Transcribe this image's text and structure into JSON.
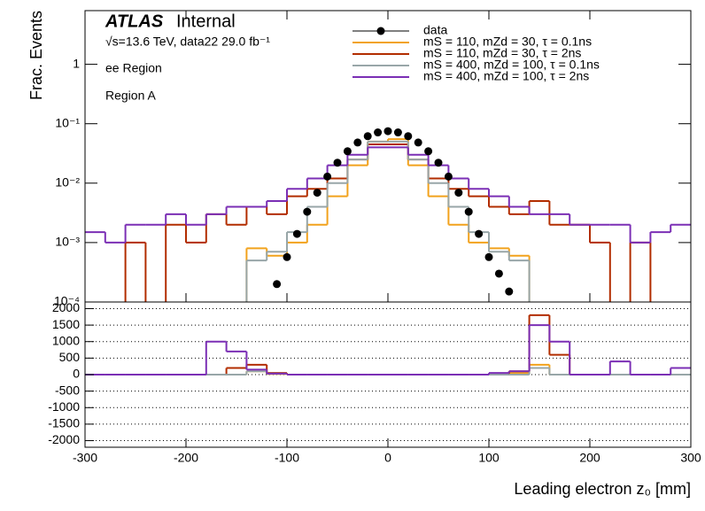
{
  "chart_data": [
    {
      "type": "histogram",
      "title": "ATLAS",
      "subtitle": "Internal",
      "energy_label": "√s=13.6 TeV, data22 29.0 fb⁻¹",
      "annotations": [
        "ee Region",
        "Region A"
      ],
      "ylabel": "Frac. Events",
      "log_y": true,
      "ylim": [
        0.0001,
        8
      ],
      "yticks": [
        {
          "value": 0.0001,
          "label": "10⁻⁴"
        },
        {
          "value": 0.001,
          "label": "10⁻³"
        },
        {
          "value": 0.01,
          "label": "10⁻²"
        },
        {
          "value": 0.1,
          "label": "10⁻¹"
        },
        1
      ],
      "bins": [
        -300,
        -280,
        -260,
        -240,
        -220,
        -200,
        -180,
        -160,
        -140,
        -120,
        -100,
        -80,
        -60,
        -40,
        -20,
        0,
        20,
        40,
        60,
        80,
        100,
        120,
        140,
        160,
        180,
        200,
        220,
        240,
        260,
        280,
        300
      ],
      "points": {
        "name": "data",
        "color": "#000000",
        "x": [
          -110,
          -100,
          -90,
          -80,
          -70,
          -60,
          -50,
          -40,
          -30,
          -20,
          -10,
          0,
          10,
          20,
          30,
          40,
          50,
          60,
          70,
          80,
          90,
          100,
          110,
          120
        ],
        "values": [
          0.0002,
          0.00057,
          0.0014,
          0.0033,
          0.0069,
          0.0129,
          0.0221,
          0.0344,
          0.0483,
          0.0617,
          0.0714,
          0.075,
          0.0714,
          0.0617,
          0.0483,
          0.0344,
          0.0221,
          0.0129,
          0.0069,
          0.0033,
          0.0014,
          0.00057,
          0.0003,
          0.00015
        ]
      },
      "series": [
        {
          "name": "mS = 110, mZd = 30, τ = 0.1ns",
          "color": "#f2a21c",
          "values": [
            0,
            0,
            0,
            0,
            0,
            0,
            0,
            0,
            0.0008,
            0.0006,
            0.001,
            0.002,
            0.006,
            0.02,
            0.05,
            0.055,
            0.02,
            0.006,
            0.002,
            0.001,
            0.0008,
            0.0006,
            0,
            0,
            0,
            0,
            0,
            0,
            0,
            0
          ]
        },
        {
          "name": "mS = 110, mZd = 30, τ = 2ns",
          "color": "#b22d00",
          "values": [
            0,
            0,
            0.001,
            0,
            0.002,
            0.001,
            0.003,
            0.002,
            0.004,
            0.003,
            0.006,
            0.008,
            0.012,
            0.025,
            0.045,
            0.045,
            0.025,
            0.012,
            0.008,
            0.006,
            0.004,
            0.003,
            0.005,
            0.002,
            0.002,
            0.001,
            0,
            0.001,
            0,
            0
          ]
        },
        {
          "name": "mS = 400, mZd = 100, τ = 0.1ns",
          "color": "#98a6a8",
          "values": [
            0,
            0,
            0,
            0,
            0,
            0,
            0,
            0,
            0.0005,
            0.0007,
            0.0015,
            0.004,
            0.01,
            0.025,
            0.05,
            0.05,
            0.025,
            0.01,
            0.004,
            0.0015,
            0.0007,
            0.0005,
            0,
            0,
            0,
            0,
            0,
            0,
            0,
            0
          ]
        },
        {
          "name": "mS = 400, mZd = 100, τ = 2ns",
          "color": "#7b2fb5",
          "values": [
            0.0015,
            0.001,
            0.002,
            0.002,
            0.003,
            0.002,
            0.003,
            0.004,
            0.004,
            0.005,
            0.008,
            0.012,
            0.02,
            0.03,
            0.04,
            0.04,
            0.03,
            0.02,
            0.012,
            0.008,
            0.006,
            0.004,
            0.003,
            0.003,
            0.002,
            0.002,
            0.002,
            0.001,
            0.0015,
            0.002
          ]
        }
      ]
    },
    {
      "type": "histogram",
      "xlabel": "Leading electron z₀ [mm]",
      "grid": true,
      "xlim": [
        -300,
        300
      ],
      "xticks": [
        -300,
        -200,
        -100,
        0,
        100,
        200,
        300
      ],
      "ylim": [
        -2200,
        2200
      ],
      "yticks": [
        -2000,
        -1500,
        -1000,
        -500,
        0,
        500,
        1000,
        1500,
        2000
      ],
      "series": [
        {
          "color": "#f2a21c",
          "values": [
            0,
            0,
            0,
            0,
            0,
            0,
            0,
            0,
            100,
            20,
            0,
            0,
            0,
            0,
            0,
            0,
            0,
            0,
            0,
            0,
            0,
            50,
            300,
            0,
            0,
            0,
            0,
            0,
            0,
            0
          ]
        },
        {
          "color": "#b22d00",
          "values": [
            0,
            0,
            0,
            0,
            0,
            0,
            0,
            200,
            300,
            50,
            0,
            0,
            0,
            0,
            0,
            0,
            0,
            0,
            0,
            0,
            0,
            100,
            1800,
            600,
            0,
            0,
            0,
            0,
            0,
            0
          ]
        },
        {
          "color": "#98a6a8",
          "values": [
            0,
            0,
            0,
            0,
            0,
            0,
            0,
            0,
            100,
            30,
            0,
            0,
            0,
            0,
            0,
            0,
            0,
            0,
            0,
            0,
            0,
            0,
            200,
            0,
            0,
            0,
            0,
            0,
            0,
            0
          ]
        },
        {
          "color": "#7b2fb5",
          "values": [
            0,
            0,
            0,
            0,
            0,
            0,
            1000,
            700,
            150,
            30,
            0,
            0,
            0,
            0,
            0,
            0,
            0,
            0,
            0,
            0,
            50,
            100,
            1500,
            1000,
            0,
            0,
            400,
            0,
            0,
            200
          ]
        }
      ]
    }
  ]
}
